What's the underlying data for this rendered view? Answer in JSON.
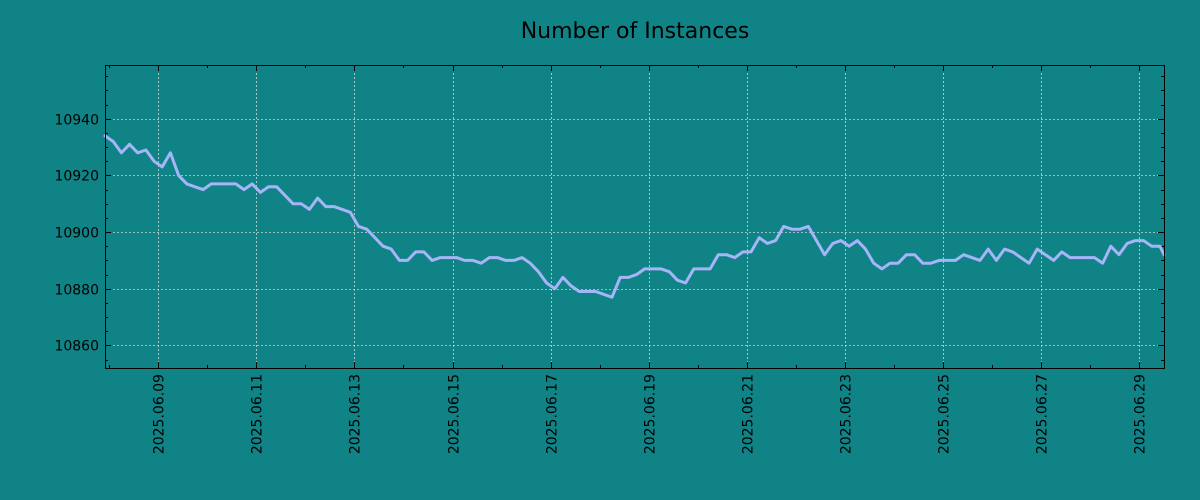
{
  "colors": {
    "background": "#108386",
    "line": "#a6b4f8",
    "grid": "#c8d8d8",
    "axis": "#000000"
  },
  "chart_data": {
    "type": "line",
    "title": "Number of Instances",
    "xlabel": "",
    "ylabel": "",
    "grid": true,
    "x_range": [
      "2025-06-07 22:00",
      "2025-06-29 12:00"
    ],
    "ylim": [
      10852,
      10959
    ],
    "y_ticks": [
      10860,
      10880,
      10900,
      10920,
      10940
    ],
    "y_tick_labels": [
      "10860",
      "10880",
      "10900",
      "10920",
      "10940"
    ],
    "x_ticks": [
      "2025-06-09",
      "2025-06-11",
      "2025-06-13",
      "2025-06-15",
      "2025-06-17",
      "2025-06-19",
      "2025-06-21",
      "2025-06-23",
      "2025-06-25",
      "2025-06-27",
      "2025-06-29"
    ],
    "x_tick_labels": [
      "2025.06.09",
      "2025.06.11",
      "2025.06.13",
      "2025.06.15",
      "2025.06.17",
      "2025.06.19",
      "2025.06.21",
      "2025.06.23",
      "2025.06.25",
      "2025.06.27",
      "2025.06.29"
    ],
    "series": [
      {
        "x": [
          "2025-06-07 22:00",
          "2025-06-08 02:00",
          "2025-06-08 06:00",
          "2025-06-08 10:00",
          "2025-06-08 14:00",
          "2025-06-08 18:00",
          "2025-06-08 22:00",
          "2025-06-09 02:00",
          "2025-06-09 06:00",
          "2025-06-09 10:00",
          "2025-06-09 14:00",
          "2025-06-09 18:00",
          "2025-06-09 22:00",
          "2025-06-10 02:00",
          "2025-06-10 06:00",
          "2025-06-10 10:00",
          "2025-06-10 14:00",
          "2025-06-10 18:00",
          "2025-06-10 22:00",
          "2025-06-11 02:00",
          "2025-06-11 06:00",
          "2025-06-11 10:00",
          "2025-06-11 14:00",
          "2025-06-11 18:00",
          "2025-06-11 22:00",
          "2025-06-12 02:00",
          "2025-06-12 06:00",
          "2025-06-12 10:00",
          "2025-06-12 14:00",
          "2025-06-12 18:00",
          "2025-06-12 22:00",
          "2025-06-13 02:00",
          "2025-06-13 06:00",
          "2025-06-13 10:00",
          "2025-06-13 14:00",
          "2025-06-13 18:00",
          "2025-06-13 22:00",
          "2025-06-14 02:00",
          "2025-06-14 06:00",
          "2025-06-14 10:00",
          "2025-06-14 14:00",
          "2025-06-14 18:00",
          "2025-06-14 22:00",
          "2025-06-15 02:00",
          "2025-06-15 06:00",
          "2025-06-15 10:00",
          "2025-06-15 14:00",
          "2025-06-15 18:00",
          "2025-06-15 22:00",
          "2025-06-16 02:00",
          "2025-06-16 06:00",
          "2025-06-16 10:00",
          "2025-06-16 14:00",
          "2025-06-16 18:00",
          "2025-06-16 22:00",
          "2025-06-17 02:00",
          "2025-06-17 06:00",
          "2025-06-17 10:00",
          "2025-06-17 14:00",
          "2025-06-17 18:00",
          "2025-06-17 22:00",
          "2025-06-18 02:00",
          "2025-06-18 06:00",
          "2025-06-18 10:00",
          "2025-06-18 14:00",
          "2025-06-18 18:00",
          "2025-06-18 22:00",
          "2025-06-19 02:00",
          "2025-06-19 06:00",
          "2025-06-19 10:00",
          "2025-06-19 14:00",
          "2025-06-19 18:00",
          "2025-06-19 22:00",
          "2025-06-20 02:00",
          "2025-06-20 06:00",
          "2025-06-20 10:00",
          "2025-06-20 14:00",
          "2025-06-20 18:00",
          "2025-06-20 22:00",
          "2025-06-21 02:00",
          "2025-06-21 06:00",
          "2025-06-21 10:00",
          "2025-06-21 14:00",
          "2025-06-21 18:00",
          "2025-06-21 22:00",
          "2025-06-22 02:00",
          "2025-06-22 06:00",
          "2025-06-22 10:00",
          "2025-06-22 14:00",
          "2025-06-22 18:00",
          "2025-06-22 22:00",
          "2025-06-23 02:00",
          "2025-06-23 06:00",
          "2025-06-23 10:00",
          "2025-06-23 14:00",
          "2025-06-23 18:00",
          "2025-06-23 22:00",
          "2025-06-24 02:00",
          "2025-06-24 06:00",
          "2025-06-24 10:00",
          "2025-06-24 14:00",
          "2025-06-24 18:00",
          "2025-06-24 22:00",
          "2025-06-25 02:00",
          "2025-06-25 06:00",
          "2025-06-25 10:00",
          "2025-06-25 14:00",
          "2025-06-25 18:00",
          "2025-06-25 22:00",
          "2025-06-26 02:00",
          "2025-06-26 06:00",
          "2025-06-26 10:00",
          "2025-06-26 14:00",
          "2025-06-26 18:00",
          "2025-06-26 22:00",
          "2025-06-27 02:00",
          "2025-06-27 06:00",
          "2025-06-27 10:00",
          "2025-06-27 14:00",
          "2025-06-27 18:00",
          "2025-06-27 22:00",
          "2025-06-28 02:00",
          "2025-06-28 06:00",
          "2025-06-28 10:00",
          "2025-06-28 14:00",
          "2025-06-28 18:00",
          "2025-06-28 22:00",
          "2025-06-29 02:00",
          "2025-06-29 06:00",
          "2025-06-29 10:00",
          "2025-06-29 12:00"
        ],
        "y": [
          10934,
          10932,
          10928,
          10931,
          10928,
          10929,
          10925,
          10923,
          10928,
          10920,
          10917,
          10916,
          10915,
          10917,
          10917,
          10917,
          10917,
          10915,
          10917,
          10914,
          10916,
          10916,
          10913,
          10910,
          10910,
          10908,
          10912,
          10909,
          10909,
          10908,
          10907,
          10902,
          10901,
          10898,
          10895,
          10894,
          10890,
          10890,
          10893,
          10893,
          10890,
          10891,
          10891,
          10891,
          10890,
          10890,
          10889,
          10891,
          10891,
          10890,
          10890,
          10891,
          10889,
          10886,
          10882,
          10880,
          10884,
          10881,
          10879,
          10879,
          10879,
          10878,
          10877,
          10884,
          10884,
          10885,
          10887,
          10887,
          10887,
          10886,
          10883,
          10882,
          10887,
          10887,
          10887,
          10892,
          10892,
          10891,
          10893,
          10893,
          10898,
          10896,
          10897,
          10902,
          10901,
          10901,
          10902,
          10897,
          10892,
          10896,
          10897,
          10895,
          10897,
          10894,
          10889,
          10887,
          10889,
          10889,
          10892,
          10892,
          10889,
          10889,
          10890,
          10890,
          10890,
          10892,
          10891,
          10890,
          10894,
          10890,
          10894,
          10893,
          10891,
          10889,
          10894,
          10892,
          10890,
          10893,
          10891,
          10891,
          10891,
          10891,
          10889,
          10895,
          10892,
          10896,
          10897,
          10897,
          10895,
          10895,
          10892
        ]
      }
    ]
  }
}
